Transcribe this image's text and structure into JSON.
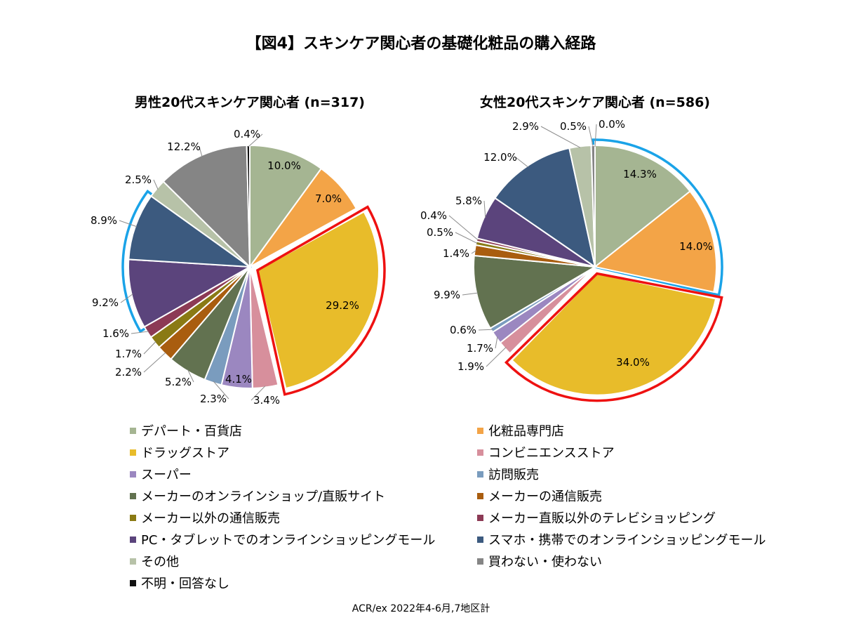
{
  "title": "【図4】スキンケア関心者の基礎化粧品の購入経路",
  "source": "ACR/ex 2022年4-6月,7地区計",
  "chart_data": [
    {
      "type": "pie",
      "title": "男性20代スキンケア関心者 (n=317)",
      "categories": [
        "デパート・百貨店",
        "化粧品専門店",
        "ドラッグストア",
        "コンビニエンスストア",
        "スーパー",
        "訪問販売",
        "メーカーのオンラインショップ/直販サイト",
        "メーカーの通信販売",
        "メーカー以外の通信販売",
        "メーカー直販以外のテレビショッピング",
        "PC・タブレットでのオンラインショッピングモール",
        "スマホ・携帯でのオンラインショッピングモール",
        "その他",
        "買わない・使わない",
        "不明・回答なし"
      ],
      "values": [
        10.0,
        7.0,
        29.2,
        3.4,
        4.1,
        2.3,
        5.2,
        2.2,
        1.7,
        1.6,
        9.2,
        8.9,
        2.5,
        12.2,
        0.4
      ],
      "labels": [
        "10.0%",
        "7.0%",
        "29.2%",
        "3.4%",
        "4.1%",
        "2.3%",
        "5.2%",
        "2.2%",
        "1.7%",
        "1.6%",
        "9.2%",
        "8.9%",
        "2.5%",
        "12.2%",
        "0.4%"
      ]
    },
    {
      "type": "pie",
      "title": "女性20代スキンケア関心者 (n=586)",
      "categories": [
        "デパート・百貨店",
        "化粧品専門店",
        "ドラッグストア",
        "コンビニエンスストア",
        "スーパー",
        "訪問販売",
        "メーカーのオンラインショップ/直販サイト",
        "メーカーの通信販売",
        "メーカー以外の通信販売",
        "メーカー直販以外のテレビショッピング",
        "PC・タブレットでのオンラインショッピングモール",
        "スマホ・携帯でのオンラインショッピングモール",
        "その他",
        "買わない・使わない",
        "不明・回答なし"
      ],
      "values": [
        14.3,
        14.0,
        34.0,
        1.9,
        1.7,
        0.6,
        9.9,
        1.4,
        0.5,
        0.4,
        5.8,
        12.0,
        2.9,
        0.5,
        0.0
      ],
      "labels": [
        "14.3%",
        "14.0%",
        "34.0%",
        "1.9%",
        "1.7%",
        "0.6%",
        "9.9%",
        "1.4%",
        "0.5%",
        "0.4%",
        "5.8%",
        "12.0%",
        "2.9%",
        "0.5%",
        "0.0%"
      ]
    }
  ],
  "colors": [
    "#a5b592",
    "#f3a447",
    "#e8bc2a",
    "#d78f9c",
    "#9b87c0",
    "#7a9cbe",
    "#627250",
    "#a95d0f",
    "#8a7a14",
    "#8c3a55",
    "#5b447c",
    "#3c5a7f",
    "#b7c2a8",
    "#858585",
    "#111111"
  ],
  "highlight_colors": {
    "red": "#ee1111",
    "blue": "#1aa3e8"
  },
  "legend": [
    {
      "label": "デパート・百貨店"
    },
    {
      "label": "化粧品専門店"
    },
    {
      "label": "ドラッグストア"
    },
    {
      "label": "コンビニエンスストア"
    },
    {
      "label": "スーパー"
    },
    {
      "label": "訪問販売"
    },
    {
      "label": "メーカーのオンラインショップ/直販サイト"
    },
    {
      "label": "メーカーの通信販売"
    },
    {
      "label": "メーカー以外の通信販売"
    },
    {
      "label": "メーカー直販以外のテレビショッピング"
    },
    {
      "label": "PC・タブレットでのオンラインショッピングモール"
    },
    {
      "label": "スマホ・携帯でのオンラインショッピングモール"
    },
    {
      "label": "その他"
    },
    {
      "label": "買わない・使わない"
    },
    {
      "label": "不明・回答なし"
    }
  ]
}
